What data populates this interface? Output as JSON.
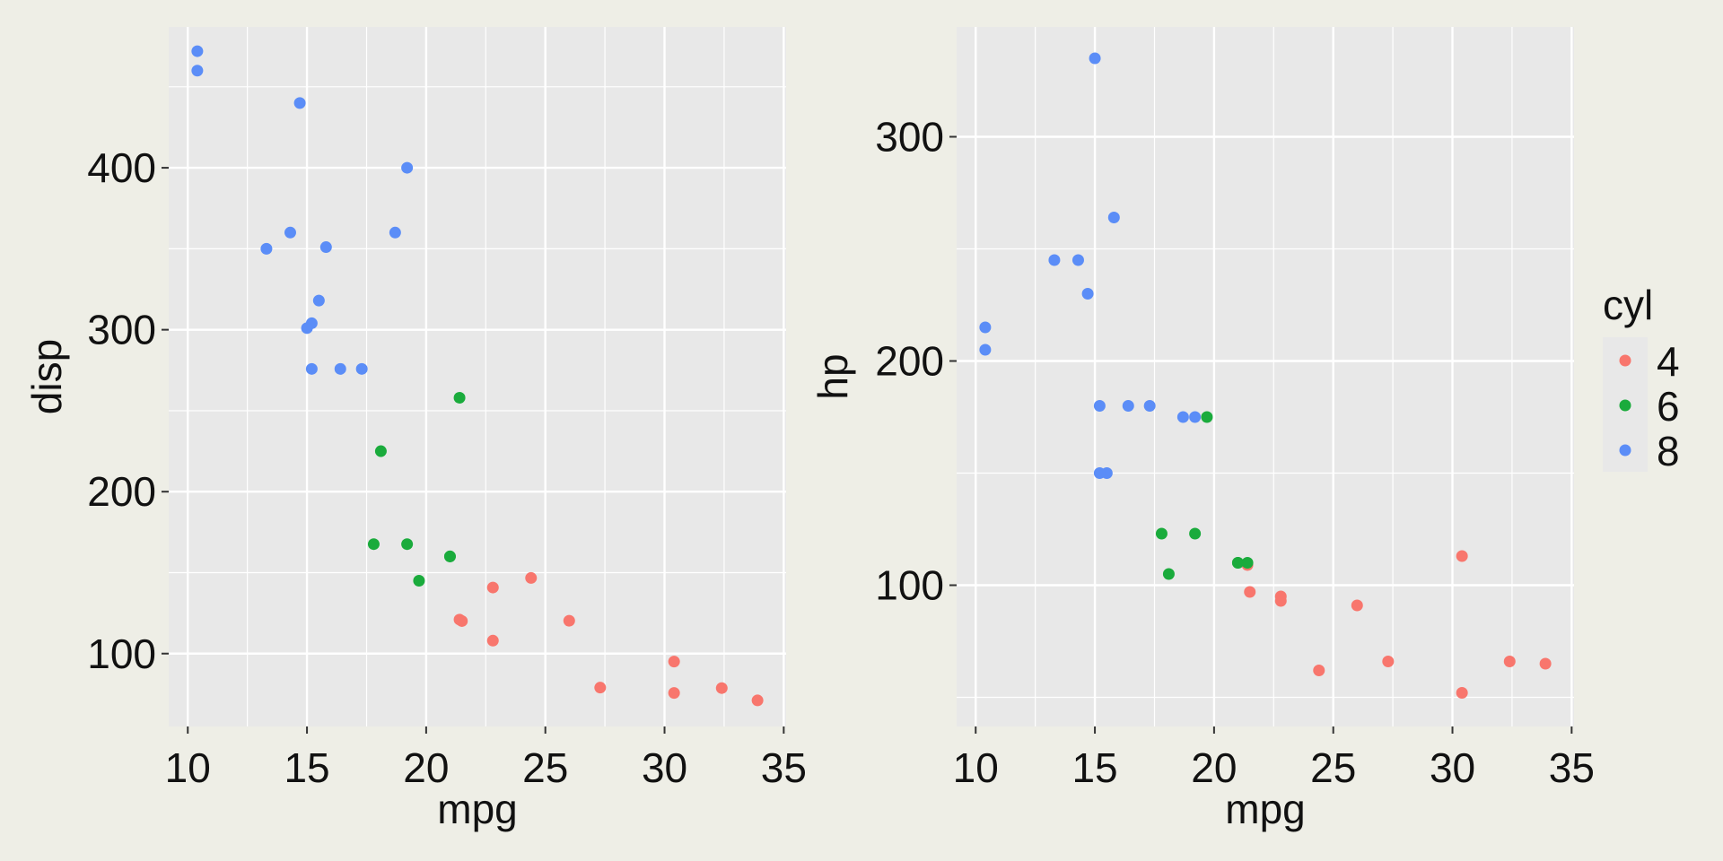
{
  "colors": {
    "cyl_4": "#f8766d",
    "cyl_6": "#1aab3c",
    "cyl_8": "#5b8df7",
    "panel_bg": "#e8e8e8",
    "grid": "#ffffff",
    "page_bg": "#eeeee6"
  },
  "legend": {
    "title": "cyl",
    "placement": "right",
    "entries": [
      {
        "label": "4",
        "color": "#f8766d"
      },
      {
        "label": "6",
        "color": "#1aab3c"
      },
      {
        "label": "8",
        "color": "#5b8df7"
      }
    ]
  },
  "chart_data": [
    {
      "type": "scatter",
      "xlabel": "mpg",
      "ylabel": "disp",
      "xlim": [
        9.2,
        35.1
      ],
      "ylim": [
        55,
        487
      ],
      "xticks": [
        10,
        15,
        20,
        25,
        30,
        35
      ],
      "yticks": [
        100,
        200,
        300,
        400
      ],
      "grid": true,
      "series": [
        {
          "name": "4",
          "color": "#f8766d",
          "points": [
            [
              22.8,
              108
            ],
            [
              24.4,
              146.7
            ],
            [
              22.8,
              140.8
            ],
            [
              32.4,
              78.7
            ],
            [
              30.4,
              75.7
            ],
            [
              33.9,
              71.1
            ],
            [
              21.5,
              120.1
            ],
            [
              27.3,
              79
            ],
            [
              26.0,
              120.3
            ],
            [
              30.4,
              95.1
            ],
            [
              21.4,
              121
            ]
          ]
        },
        {
          "name": "6",
          "color": "#1aab3c",
          "points": [
            [
              21.0,
              160
            ],
            [
              21.0,
              160
            ],
            [
              21.4,
              258
            ],
            [
              18.1,
              225
            ],
            [
              19.2,
              167.6
            ],
            [
              17.8,
              167.6
            ],
            [
              19.7,
              145
            ]
          ]
        },
        {
          "name": "8",
          "color": "#5b8df7",
          "points": [
            [
              18.7,
              360
            ],
            [
              14.3,
              360
            ],
            [
              16.4,
              275.8
            ],
            [
              17.3,
              275.8
            ],
            [
              15.2,
              275.8
            ],
            [
              10.4,
              472
            ],
            [
              10.4,
              460
            ],
            [
              14.7,
              440
            ],
            [
              15.5,
              318
            ],
            [
              15.2,
              304
            ],
            [
              13.3,
              350
            ],
            [
              19.2,
              400
            ],
            [
              15.8,
              351
            ],
            [
              15.0,
              301
            ]
          ]
        }
      ]
    },
    {
      "type": "scatter",
      "xlabel": "mpg",
      "ylabel": "hp",
      "xlim": [
        9.2,
        35.1
      ],
      "ylim": [
        37,
        349
      ],
      "xticks": [
        10,
        15,
        20,
        25,
        30,
        35
      ],
      "yticks": [
        100,
        200,
        300
      ],
      "grid": true,
      "series": [
        {
          "name": "4",
          "color": "#f8766d",
          "points": [
            [
              22.8,
              93
            ],
            [
              24.4,
              62
            ],
            [
              22.8,
              95
            ],
            [
              32.4,
              66
            ],
            [
              30.4,
              52
            ],
            [
              33.9,
              65
            ],
            [
              21.5,
              97
            ],
            [
              27.3,
              66
            ],
            [
              26.0,
              91
            ],
            [
              30.4,
              113
            ],
            [
              21.4,
              109
            ]
          ]
        },
        {
          "name": "6",
          "color": "#1aab3c",
          "points": [
            [
              21.0,
              110
            ],
            [
              21.0,
              110
            ],
            [
              21.4,
              110
            ],
            [
              18.1,
              105
            ],
            [
              19.2,
              123
            ],
            [
              17.8,
              123
            ],
            [
              19.7,
              175
            ]
          ]
        },
        {
          "name": "8",
          "color": "#5b8df7",
          "points": [
            [
              18.7,
              175
            ],
            [
              14.3,
              245
            ],
            [
              16.4,
              180
            ],
            [
              17.3,
              180
            ],
            [
              15.2,
              180
            ],
            [
              10.4,
              205
            ],
            [
              10.4,
              215
            ],
            [
              14.7,
              230
            ],
            [
              15.5,
              150
            ],
            [
              15.2,
              150
            ],
            [
              13.3,
              245
            ],
            [
              19.2,
              175
            ],
            [
              15.8,
              264
            ],
            [
              15.0,
              335
            ]
          ]
        }
      ]
    }
  ]
}
